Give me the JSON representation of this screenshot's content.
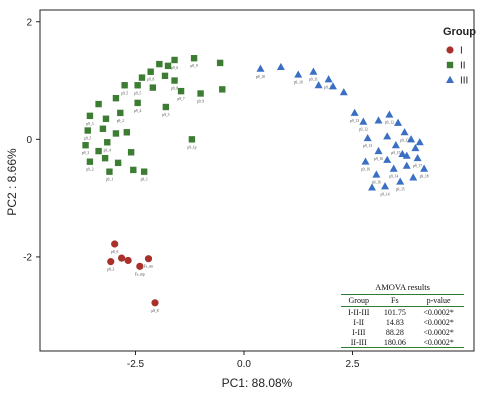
{
  "chart_data": {
    "type": "scatter",
    "xlabel": "PC1: 88.08%",
    "ylabel": "PC2 : 8.66%",
    "xlim": [
      -4.7,
      5.3
    ],
    "ylim": [
      -3.6,
      2.2
    ],
    "xticks": [
      {
        "value": -2.5,
        "label": "-2.5"
      },
      {
        "value": 0,
        "label": "0.0"
      },
      {
        "value": 2.5,
        "label": "2.5"
      }
    ],
    "yticks": [
      {
        "value": 2,
        "label": "2"
      },
      {
        "value": 0,
        "label": "0"
      },
      {
        "value": -2,
        "label": "-2"
      }
    ],
    "grid": false,
    "legend": {
      "title": "Group",
      "placement": "top-right"
    },
    "series": [
      {
        "name": "I",
        "color": "#a8322b",
        "marker": "circle",
        "points": [
          {
            "x": -2.98,
            "y": -1.78,
            "label": "p8_6"
          },
          {
            "x": -3.07,
            "y": -2.08,
            "label": "p8_3"
          },
          {
            "x": -2.82,
            "y": -2.02,
            "label": ""
          },
          {
            "x": -2.67,
            "y": -2.06,
            "label": ""
          },
          {
            "x": -2.2,
            "y": -2.03,
            "label": "Fs_sm"
          },
          {
            "x": -2.4,
            "y": -2.16,
            "label": "Fs_mp"
          },
          {
            "x": -2.05,
            "y": -2.78,
            "label": "p8_8"
          }
        ]
      },
      {
        "name": "II",
        "color": "#3d7d33",
        "marker": "square",
        "points": [
          {
            "x": -1.15,
            "y": 1.38,
            "label": "p9_9"
          },
          {
            "x": -0.55,
            "y": 1.3,
            "label": ""
          },
          {
            "x": -1.6,
            "y": 1.35,
            "label": "p9_6"
          },
          {
            "x": -1.75,
            "y": 1.25,
            "label": ""
          },
          {
            "x": -1.95,
            "y": 1.28,
            "label": ""
          },
          {
            "x": -2.15,
            "y": 1.15,
            "label": "p9_8"
          },
          {
            "x": -1.82,
            "y": 1.08,
            "label": ""
          },
          {
            "x": -1.6,
            "y": 1.0,
            "label": "p9_8"
          },
          {
            "x": -2.35,
            "y": 1.05,
            "label": ""
          },
          {
            "x": -2.45,
            "y": 0.92,
            "label": "p9_5"
          },
          {
            "x": -2.1,
            "y": 0.88,
            "label": ""
          },
          {
            "x": -1.45,
            "y": 0.82,
            "label": "p9_7"
          },
          {
            "x": -0.5,
            "y": 0.85,
            "label": ""
          },
          {
            "x": -1.0,
            "y": 0.78,
            "label": "p9_9"
          },
          {
            "x": -2.75,
            "y": 0.92,
            "label": "p9_5"
          },
          {
            "x": -2.95,
            "y": 0.7,
            "label": ""
          },
          {
            "x": -2.45,
            "y": 0.62,
            "label": "p9_4"
          },
          {
            "x": -1.8,
            "y": 0.55,
            "label": "p9_5"
          },
          {
            "x": -2.85,
            "y": 0.45,
            "label": "p9_2"
          },
          {
            "x": -3.35,
            "y": 0.6,
            "label": ""
          },
          {
            "x": -3.55,
            "y": 0.4,
            "label": "p9_3"
          },
          {
            "x": -3.18,
            "y": 0.35,
            "label": ""
          },
          {
            "x": -3.6,
            "y": 0.15,
            "label": "p9_5"
          },
          {
            "x": -3.25,
            "y": 0.18,
            "label": ""
          },
          {
            "x": -2.95,
            "y": 0.1,
            "label": ""
          },
          {
            "x": -2.7,
            "y": 0.12,
            "label": ""
          },
          {
            "x": -3.15,
            "y": -0.05,
            "label": "p9_4"
          },
          {
            "x": -3.65,
            "y": -0.1,
            "label": "p9_3"
          },
          {
            "x": -3.35,
            "y": -0.2,
            "label": ""
          },
          {
            "x": -2.6,
            "y": -0.22,
            "label": ""
          },
          {
            "x": -3.55,
            "y": -0.38,
            "label": "p9_2"
          },
          {
            "x": -3.2,
            "y": -0.32,
            "label": ""
          },
          {
            "x": -2.9,
            "y": -0.4,
            "label": ""
          },
          {
            "x": -3.1,
            "y": -0.55,
            "label": "p9_1"
          },
          {
            "x": -2.55,
            "y": -0.52,
            "label": ""
          },
          {
            "x": -2.3,
            "y": -0.55,
            "label": "p9_1"
          },
          {
            "x": -1.2,
            "y": 0.0,
            "label": "p9_1p"
          }
        ]
      },
      {
        "name": "III",
        "color": "#3a6fc4",
        "marker": "triangle",
        "points": [
          {
            "x": 0.38,
            "y": 1.2,
            "label": "p9_10"
          },
          {
            "x": 0.85,
            "y": 1.23,
            "label": ""
          },
          {
            "x": 1.25,
            "y": 1.1,
            "label": "p9_10"
          },
          {
            "x": 1.6,
            "y": 1.15,
            "label": "p9_11"
          },
          {
            "x": 1.95,
            "y": 1.02,
            "label": "p9_11"
          },
          {
            "x": 1.72,
            "y": 0.92,
            "label": ""
          },
          {
            "x": 2.05,
            "y": 0.9,
            "label": ""
          },
          {
            "x": 2.3,
            "y": 0.8,
            "label": ""
          },
          {
            "x": 2.55,
            "y": 0.45,
            "label": "p9_13"
          },
          {
            "x": 2.75,
            "y": 0.3,
            "label": "p9_12"
          },
          {
            "x": 3.1,
            "y": 0.32,
            "label": ""
          },
          {
            "x": 3.35,
            "y": 0.42,
            "label": "p9_12"
          },
          {
            "x": 3.55,
            "y": 0.28,
            "label": ""
          },
          {
            "x": 3.7,
            "y": 0.12,
            "label": "p9_13"
          },
          {
            "x": 3.3,
            "y": 0.05,
            "label": ""
          },
          {
            "x": 2.85,
            "y": 0.02,
            "label": "p9_13"
          },
          {
            "x": 3.85,
            "y": 0.0,
            "label": ""
          },
          {
            "x": 3.5,
            "y": -0.1,
            "label": "p9_15"
          },
          {
            "x": 3.95,
            "y": -0.15,
            "label": ""
          },
          {
            "x": 3.1,
            "y": -0.2,
            "label": "p9_16"
          },
          {
            "x": 3.65,
            "y": -0.25,
            "label": ""
          },
          {
            "x": 4.0,
            "y": -0.32,
            "label": "p9_17"
          },
          {
            "x": 3.3,
            "y": -0.35,
            "label": ""
          },
          {
            "x": 2.8,
            "y": -0.38,
            "label": "p9_16"
          },
          {
            "x": 3.75,
            "y": -0.45,
            "label": ""
          },
          {
            "x": 4.15,
            "y": -0.5,
            "label": "p9_18"
          },
          {
            "x": 3.45,
            "y": -0.5,
            "label": "p9_14"
          },
          {
            "x": 3.05,
            "y": -0.6,
            "label": "p9_16"
          },
          {
            "x": 3.9,
            "y": -0.65,
            "label": ""
          },
          {
            "x": 3.6,
            "y": -0.72,
            "label": "p9_15"
          },
          {
            "x": 3.25,
            "y": -0.8,
            "label": "p9_14"
          },
          {
            "x": 2.95,
            "y": -0.82,
            "label": ""
          },
          {
            "x": 3.75,
            "y": -0.28,
            "label": ""
          },
          {
            "x": 4.05,
            "y": -0.05,
            "label": ""
          }
        ]
      }
    ]
  },
  "amova": {
    "title": "AMOVA  results",
    "headers": [
      "Group",
      "Fs",
      "p-value"
    ],
    "rows": [
      [
        "I-II-III",
        "101.75",
        "<0.0002*"
      ],
      [
        "I-II",
        "14.83",
        "<0.0002*"
      ],
      [
        "I-III",
        "88.28",
        "<0.0002*"
      ],
      [
        "II-III",
        "180.06",
        "<0.0002*"
      ]
    ]
  }
}
